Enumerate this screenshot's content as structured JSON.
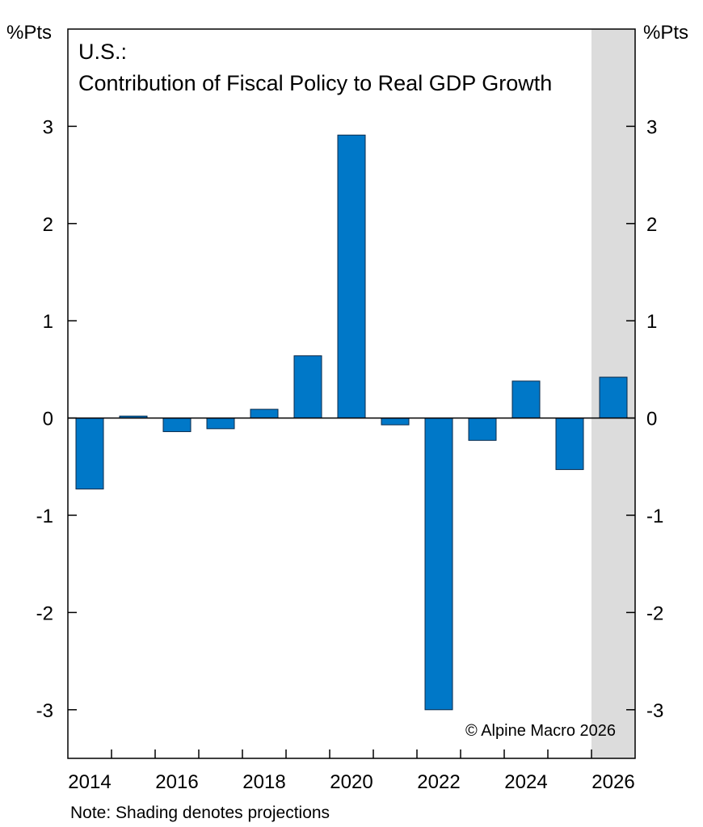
{
  "chart_data": {
    "type": "bar",
    "title": "U.S.:",
    "subtitle": "Contribution of Fiscal Policy to Real GDP Growth",
    "ylabel_left": "%Pts",
    "ylabel_right": "%Pts",
    "x": [
      2014,
      2015,
      2016,
      2017,
      2018,
      2019,
      2020,
      2021,
      2022,
      2023,
      2024,
      2025,
      2026
    ],
    "values": [
      -0.73,
      0.02,
      -0.14,
      -0.11,
      0.09,
      0.64,
      2.91,
      -0.07,
      -3.0,
      -0.23,
      0.38,
      -0.53,
      0.42
    ],
    "x_tick_labels": [
      "2014",
      "2016",
      "2018",
      "2020",
      "2022",
      "2024",
      "2026"
    ],
    "y_ticks": [
      -3,
      -2,
      -1,
      0,
      1,
      2,
      3
    ],
    "ylim": [
      -3.5,
      4.0
    ],
    "xlim": [
      2013.5,
      2026.5
    ],
    "projection_shading_from": 2025.5,
    "bar_color": "#0078c8",
    "shade_color": "#dcdcdc",
    "grid": false,
    "credit": "© Alpine Macro 2026",
    "note": "Note: Shading denotes projections"
  }
}
